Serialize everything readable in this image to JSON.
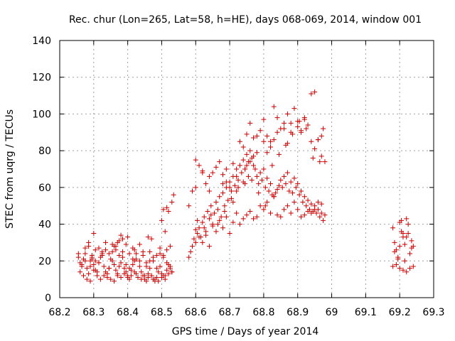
{
  "chart_data": {
    "type": "scatter",
    "title": "Rec. chur (Lon=265, Lat=58, h=HE), days 068-069, 2014, window 001",
    "xlabel": "GPS time / Days of year 2014",
    "ylabel": "STEC from uqrg / TECUs",
    "xlim": [
      68.2,
      69.3
    ],
    "ylim": [
      0,
      140
    ],
    "xticks": [
      "68.2",
      "68.3",
      "68.4",
      "68.5",
      "68.6",
      "68.7",
      "68.8",
      "68.9",
      "69",
      "69.1",
      "69.2",
      "69.3"
    ],
    "yticks": [
      "0",
      "20",
      "40",
      "60",
      "80",
      "100",
      "120",
      "140"
    ],
    "grid": true,
    "marker": "plus",
    "marker_color": "#cc0000",
    "series": [
      {
        "x": [
          68.255,
          68.26,
          68.265,
          68.27,
          68.275,
          68.28,
          68.285,
          68.29,
          68.295,
          68.3,
          68.305,
          68.31,
          68.315,
          68.32,
          68.325,
          68.33,
          68.335,
          68.34,
          68.345,
          68.35,
          68.355,
          68.36,
          68.365,
          68.37,
          68.375,
          68.38,
          68.385,
          68.39,
          68.395,
          68.4,
          68.405,
          68.41,
          68.415,
          68.42,
          68.425,
          68.43,
          68.435,
          68.44,
          68.445,
          68.45,
          68.455,
          68.46,
          68.465,
          68.47,
          68.475,
          68.48,
          68.485,
          68.49,
          68.495,
          68.5,
          68.505,
          68.51,
          68.515,
          68.52,
          68.525,
          68.53,
          68.255,
          68.265,
          68.275,
          68.285,
          68.295,
          68.305,
          68.315,
          68.325,
          68.335,
          68.345,
          68.355,
          68.365,
          68.375,
          68.385,
          68.395,
          68.405,
          68.415,
          68.425,
          68.435,
          68.445,
          68.455,
          68.465,
          68.475,
          68.485,
          68.495,
          68.505,
          68.515,
          68.525,
          68.26,
          68.27,
          68.28,
          68.29,
          68.3,
          68.31,
          68.32,
          68.33,
          68.34,
          68.35,
          68.36,
          68.37,
          68.38,
          68.39,
          68.4,
          68.41,
          68.42,
          68.43,
          68.44,
          68.45,
          68.46,
          68.47,
          68.48,
          68.49,
          68.5,
          68.51,
          68.52,
          68.53,
          68.275,
          68.295,
          68.315,
          68.335,
          68.355,
          68.375,
          68.395,
          68.415,
          68.435,
          68.455,
          68.475,
          68.495,
          68.515,
          68.285,
          68.305,
          68.325,
          68.345,
          68.365,
          68.385,
          68.405,
          68.425,
          68.445,
          68.465,
          68.485,
          68.505,
          68.525,
          68.29,
          68.3,
          68.36,
          68.37,
          68.38,
          68.4,
          68.42,
          68.46,
          68.47,
          68.5,
          68.51,
          68.52,
          68.53,
          68.535,
          68.505,
          68.515
        ],
        "y": [
          22,
          19,
          17,
          21,
          24,
          16,
          13,
          20,
          23,
          18,
          15,
          12,
          19,
          22,
          25,
          17,
          14,
          11,
          16,
          21,
          20,
          18,
          15,
          13,
          17,
          19,
          22,
          16,
          14,
          12,
          10,
          15,
          18,
          20,
          13,
          11,
          17,
          14,
          12,
          10,
          9,
          13,
          16,
          12,
          10,
          9,
          11,
          14,
          17,
          13,
          12,
          10,
          15,
          18,
          16,
          14,
          24,
          18,
          20,
          28,
          21,
          26,
          27,
          23,
          30,
          24,
          29,
          26,
          31,
          25,
          29,
          24,
          27,
          21,
          20,
          23,
          17,
          25,
          20,
          23,
          27,
          22,
          26,
          28,
          14,
          12,
          10,
          17,
          15,
          14,
          10,
          12,
          13,
          10,
          9,
          12,
          11,
          13,
          11,
          12,
          14,
          11,
          10,
          12,
          11,
          12,
          10,
          9,
          11,
          12,
          13,
          14,
          27,
          22,
          19,
          26,
          25,
          23,
          18,
          21,
          29,
          19,
          22,
          24,
          19,
          30,
          20,
          24,
          16,
          28,
          32,
          16,
          24,
          25,
          20,
          16,
          23,
          17,
          9,
          35,
          28,
          30,
          34,
          33,
          26,
          33,
          32,
          42,
          36,
          47,
          52,
          56,
          48,
          49
        ]
      },
      {
        "x": [
          68.58,
          68.585,
          68.59,
          68.595,
          68.6,
          68.605,
          68.61,
          68.615,
          68.62,
          68.625,
          68.63,
          68.635,
          68.64,
          68.645,
          68.65,
          68.655,
          68.66,
          68.665,
          68.67,
          68.675,
          68.68,
          68.685,
          68.69,
          68.695,
          68.7,
          68.705,
          68.71,
          68.715,
          68.72,
          68.725,
          68.73,
          68.735,
          68.74,
          68.745,
          68.75,
          68.755,
          68.76,
          68.765,
          68.77,
          68.775,
          68.78,
          68.785,
          68.79,
          68.795,
          68.8,
          68.805,
          68.81,
          68.815,
          68.82,
          68.825,
          68.83,
          68.835,
          68.84,
          68.845,
          68.85,
          68.855,
          68.86,
          68.865,
          68.87,
          68.875,
          68.88,
          68.885,
          68.89,
          68.895,
          68.9,
          68.905,
          68.91,
          68.915,
          68.92,
          68.925,
          68.93,
          68.935,
          68.94,
          68.945,
          68.95,
          68.955,
          68.96,
          68.965,
          68.97,
          68.975,
          68.98,
          68.58,
          68.59,
          68.6,
          68.61,
          68.62,
          68.63,
          68.64,
          68.65,
          68.66,
          68.67,
          68.68,
          68.69,
          68.7,
          68.71,
          68.72,
          68.73,
          68.74,
          68.75,
          68.76,
          68.77,
          68.78,
          68.79,
          68.8,
          68.81,
          68.82,
          68.83,
          68.84,
          68.85,
          68.86,
          68.87,
          68.88,
          68.89,
          68.9,
          68.91,
          68.92,
          68.93,
          68.94,
          68.95,
          68.96,
          68.97,
          68.98,
          68.6,
          68.61,
          68.62,
          68.63,
          68.64,
          68.65,
          68.66,
          68.67,
          68.68,
          68.69,
          68.7,
          68.71,
          68.72,
          68.73,
          68.74,
          68.75,
          68.76,
          68.77,
          68.78,
          68.79,
          68.8,
          68.81,
          68.82,
          68.83,
          68.84,
          68.85,
          68.86,
          68.87,
          68.88,
          68.89,
          68.9,
          68.91,
          68.92,
          68.93,
          68.94,
          68.95,
          68.96,
          68.97,
          68.6,
          68.62,
          68.64,
          68.68,
          68.69,
          68.71,
          68.72,
          68.74,
          68.745,
          68.75,
          68.755,
          68.76,
          68.77,
          68.78,
          68.8,
          68.81,
          68.82,
          68.83,
          68.84,
          68.86,
          68.87,
          68.88,
          68.9,
          68.91,
          68.92,
          68.94,
          68.95,
          68.96,
          68.97,
          68.975,
          68.605,
          68.625,
          68.645,
          68.665,
          68.685,
          68.705,
          68.725,
          68.745,
          68.765,
          68.785,
          68.805,
          68.825,
          68.845,
          68.865,
          68.885,
          68.905,
          68.925,
          68.945,
          68.965
        ],
        "y": [
          22,
          25,
          28,
          32,
          30,
          35,
          38,
          33,
          41,
          44,
          36,
          47,
          43,
          50,
          39,
          46,
          52,
          48,
          55,
          44,
          57,
          50,
          60,
          53,
          63,
          58,
          66,
          61,
          70,
          64,
          72,
          68,
          75,
          70,
          78,
          74,
          80,
          76,
          72,
          70,
          66,
          62,
          68,
          64,
          70,
          60,
          65,
          58,
          62,
          56,
          55,
          57,
          59,
          61,
          64,
          60,
          66,
          62,
          68,
          58,
          63,
          57,
          65,
          60,
          62,
          56,
          58,
          52,
          55,
          50,
          53,
          48,
          51,
          47,
          50,
          46,
          48,
          44,
          46,
          42,
          45,
          50,
          58,
          75,
          72,
          69,
          62,
          66,
          68,
          71,
          74,
          67,
          63,
          60,
          73,
          66,
          85,
          82,
          89,
          95,
          87,
          79,
          91,
          97,
          88,
          85,
          104,
          98,
          92,
          95,
          100,
          90,
          103,
          96,
          91,
          97,
          94,
          111,
          112,
          86,
          77,
          74,
          37,
          33,
          30,
          34,
          28,
          40,
          36,
          42,
          38,
          44,
          35,
          41,
          46,
          40,
          43,
          45,
          47,
          43,
          44,
          50,
          48,
          52,
          46,
          55,
          45,
          44,
          48,
          50,
          46,
          52,
          48,
          44,
          45,
          47,
          46,
          48,
          52,
          51,
          60,
          68,
          58,
          62,
          70,
          52,
          58,
          63,
          70,
          72,
          66,
          74,
          77,
          88,
          85,
          79,
          82,
          86,
          90,
          92,
          84,
          95,
          93,
          90,
          98,
          85,
          81,
          86,
          88,
          92,
          42,
          38,
          45,
          40,
          47,
          54,
          60,
          62,
          64,
          57,
          50,
          72,
          78,
          83,
          89,
          96,
          92,
          76,
          74
        ]
      },
      {
        "x": [
          69.18,
          69.185,
          69.19,
          69.195,
          69.2,
          69.205,
          69.21,
          69.215,
          69.22,
          69.225,
          69.23,
          69.235,
          69.24,
          69.18,
          69.19,
          69.2,
          69.21,
          69.22,
          69.23,
          69.24,
          69.185,
          69.195,
          69.205,
          69.215,
          69.225,
          69.235,
          69.2,
          69.21,
          69.22
        ],
        "y": [
          38,
          30,
          26,
          22,
          41,
          36,
          33,
          29,
          43,
          35,
          24,
          31,
          28,
          17,
          18,
          16,
          15,
          14,
          16,
          17,
          25,
          21,
          42,
          20,
          40,
          27,
          28,
          35,
          33
        ]
      }
    ]
  }
}
